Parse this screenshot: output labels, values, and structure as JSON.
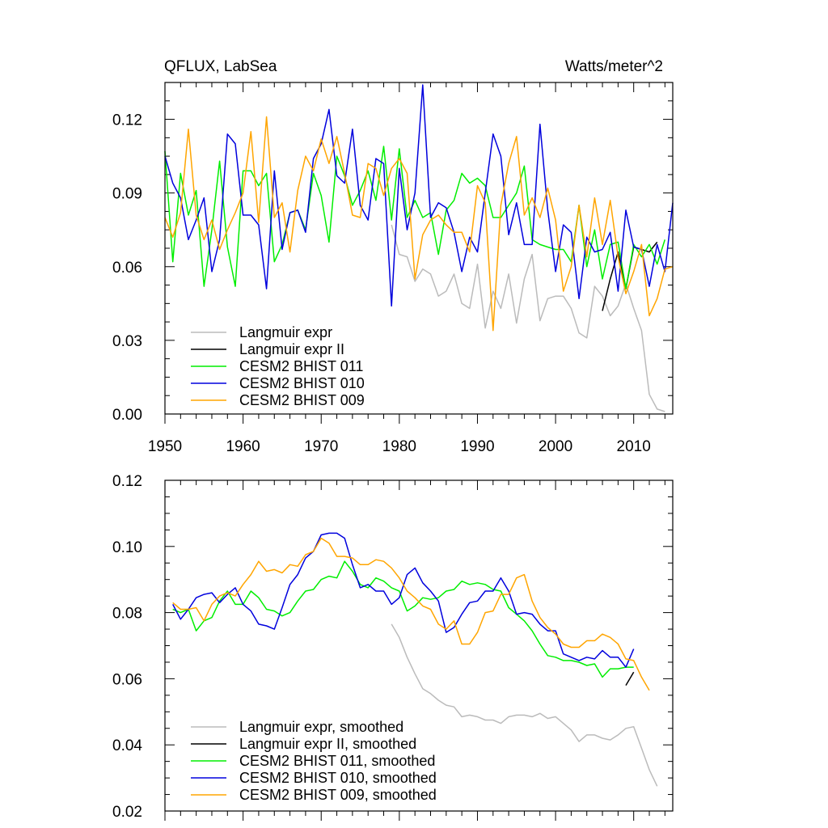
{
  "chart_data": [
    {
      "type": "line",
      "title": "QFLUX, LabSea",
      "units": "Watts/meter^2",
      "xlim": [
        1950,
        2015
      ],
      "ylim": [
        0.0,
        0.135
      ],
      "xticks": [
        "1950",
        "1960",
        "1970",
        "1980",
        "1990",
        "2000",
        "2010"
      ],
      "yticks": [
        "0.00",
        "0.03",
        "0.06",
        "0.09",
        "0.12"
      ],
      "xtick_values": [
        1950,
        1960,
        1970,
        1980,
        1990,
        2000,
        2010
      ],
      "ytick_values": [
        0.0,
        0.03,
        0.06,
        0.09,
        0.12
      ],
      "legend_position": "bottom-left",
      "series": [
        {
          "name": "Langmuir expr",
          "color": "#bbbbbb",
          "x_start": 1979,
          "values": [
            0.077,
            0.065,
            0.064,
            0.054,
            0.059,
            0.057,
            0.048,
            0.05,
            0.057,
            0.045,
            0.043,
            0.061,
            0.035,
            0.05,
            0.043,
            0.057,
            0.037,
            0.055,
            0.065,
            0.038,
            0.047,
            0.048,
            0.048,
            0.043,
            0.033,
            0.031,
            0.052,
            0.048,
            0.04,
            0.044,
            0.053,
            0.043,
            0.034,
            0.008,
            0.002,
            0.001
          ]
        },
        {
          "name": "Langmuir expr II",
          "color": "#000000",
          "x_start": 2006,
          "values": [
            0.042,
            0.055,
            0.066,
            0.051,
            0.068,
            0.067,
            0.066,
            0.07
          ]
        },
        {
          "name": "CESM2 BHIST 011",
          "color": "#00ee00",
          "x_start": 1950,
          "values": [
            0.107,
            0.062,
            0.098,
            0.081,
            0.091,
            0.052,
            0.075,
            0.103,
            0.068,
            0.052,
            0.099,
            0.099,
            0.093,
            0.098,
            0.062,
            0.069,
            0.082,
            0.083,
            0.075,
            0.098,
            0.089,
            0.07,
            0.105,
            0.097,
            0.085,
            0.091,
            0.099,
            0.087,
            0.109,
            0.079,
            0.108,
            0.08,
            0.087,
            0.08,
            0.082,
            0.065,
            0.083,
            0.087,
            0.098,
            0.094,
            0.096,
            0.093,
            0.08,
            0.08,
            0.085,
            0.09,
            0.101,
            0.071,
            0.069,
            0.068,
            0.067,
            0.067,
            0.062,
            0.085,
            0.06,
            0.075,
            0.055,
            0.069,
            0.07,
            0.051,
            0.069,
            0.064,
            0.069,
            0.061,
            0.071
          ]
        },
        {
          "name": "CESM2 BHIST 010",
          "color": "#0000dd",
          "x_start": 1950,
          "values": [
            0.105,
            0.094,
            0.088,
            0.071,
            0.079,
            0.088,
            0.058,
            0.071,
            0.114,
            0.11,
            0.081,
            0.081,
            0.077,
            0.051,
            0.099,
            0.067,
            0.082,
            0.083,
            0.074,
            0.104,
            0.11,
            0.124,
            0.097,
            0.094,
            0.116,
            0.085,
            0.079,
            0.104,
            0.102,
            0.044,
            0.1,
            0.075,
            0.09,
            0.134,
            0.08,
            0.086,
            0.084,
            0.074,
            0.058,
            0.072,
            0.066,
            0.09,
            0.114,
            0.105,
            0.073,
            0.086,
            0.069,
            0.069,
            0.118,
            0.083,
            0.058,
            0.077,
            0.074,
            0.047,
            0.072,
            0.066,
            0.067,
            0.074,
            0.05,
            0.083,
            0.068,
            0.067,
            0.052,
            0.069,
            0.058,
            0.086
          ]
        },
        {
          "name": "CESM2 BHIST 009",
          "color": "#ffa500",
          "x_start": 1950,
          "values": [
            0.08,
            0.072,
            0.082,
            0.116,
            0.081,
            0.071,
            0.079,
            0.067,
            0.075,
            0.082,
            0.09,
            0.115,
            0.078,
            0.121,
            0.08,
            0.086,
            0.066,
            0.091,
            0.105,
            0.099,
            0.112,
            0.102,
            0.113,
            0.098,
            0.081,
            0.08,
            0.102,
            0.1,
            0.089,
            0.1,
            0.104,
            0.098,
            0.055,
            0.073,
            0.079,
            0.081,
            0.077,
            0.074,
            0.074,
            0.066,
            0.093,
            0.086,
            0.034,
            0.085,
            0.102,
            0.113,
            0.081,
            0.088,
            0.08,
            0.092,
            0.079,
            0.05,
            0.06,
            0.085,
            0.064,
            0.088,
            0.069,
            0.087,
            0.064,
            0.049,
            0.058,
            0.069,
            0.04,
            0.047,
            0.059,
            0.06
          ]
        }
      ]
    },
    {
      "type": "line",
      "title": "",
      "xlim": [
        1950,
        2015
      ],
      "ylim": [
        0.02,
        0.12
      ],
      "xticks": [],
      "yticks": [
        "0.02",
        "0.04",
        "0.06",
        "0.08",
        "0.10",
        "0.12"
      ],
      "ytick_values": [
        0.02,
        0.04,
        0.06,
        0.08,
        0.1,
        0.12
      ],
      "legend_position": "bottom-left",
      "series": [
        {
          "name": "Langmuir expr, smoothed",
          "color": "#bbbbbb",
          "x_start": 1979,
          "values": [
            0.0765,
            0.0725,
            0.0665,
            0.0615,
            0.057,
            0.0555,
            0.0535,
            0.052,
            0.0515,
            0.0485,
            0.049,
            0.0485,
            0.0475,
            0.0475,
            0.0465,
            0.0485,
            0.049,
            0.049,
            0.0485,
            0.0495,
            0.048,
            0.0485,
            0.0465,
            0.0445,
            0.041,
            0.043,
            0.043,
            0.042,
            0.0415,
            0.043,
            0.045,
            0.0455,
            0.039,
            0.0325,
            0.0275
          ]
        },
        {
          "name": "Langmuir expr II, smoothed",
          "color": "#000000",
          "x_start": 2009,
          "values": [
            0.058,
            0.062
          ]
        },
        {
          "name": "CESM2 BHIST 011, smoothed",
          "color": "#00ee00",
          "x_start": 1951,
          "values": [
            0.081,
            0.08,
            0.081,
            0.0745,
            0.0775,
            0.0785,
            0.0835,
            0.0865,
            0.0825,
            0.0825,
            0.0865,
            0.0845,
            0.081,
            0.0805,
            0.079,
            0.08,
            0.0835,
            0.0865,
            0.087,
            0.09,
            0.091,
            0.0905,
            0.0955,
            0.0925,
            0.0885,
            0.0875,
            0.0905,
            0.0895,
            0.0875,
            0.0865,
            0.0805,
            0.082,
            0.0845,
            0.084,
            0.0845,
            0.0865,
            0.087,
            0.0895,
            0.0885,
            0.089,
            0.0885,
            0.087,
            0.0865,
            0.0815,
            0.0795,
            0.0775,
            0.0745,
            0.0705,
            0.067,
            0.0665,
            0.0655,
            0.0655,
            0.065,
            0.064,
            0.0645,
            0.0605,
            0.063,
            0.063,
            0.0635,
            0.0635
          ]
        },
        {
          "name": "CESM2 BHIST 010, smoothed",
          "color": "#0000dd",
          "x_start": 1951,
          "values": [
            0.0825,
            0.078,
            0.081,
            0.0845,
            0.0855,
            0.086,
            0.083,
            0.0855,
            0.0875,
            0.0825,
            0.0805,
            0.0765,
            0.076,
            0.075,
            0.0815,
            0.0885,
            0.0915,
            0.0965,
            0.0985,
            0.1035,
            0.104,
            0.104,
            0.1025,
            0.0945,
            0.0875,
            0.0885,
            0.0865,
            0.0865,
            0.0825,
            0.0845,
            0.0915,
            0.0935,
            0.089,
            0.0865,
            0.0835,
            0.074,
            0.0755,
            0.0795,
            0.083,
            0.0835,
            0.0865,
            0.0865,
            0.0905,
            0.0865,
            0.0795,
            0.08,
            0.0795,
            0.0765,
            0.0745,
            0.0745,
            0.0675,
            0.0665,
            0.0655,
            0.0665,
            0.066,
            0.0685,
            0.0665,
            0.0665,
            0.0635,
            0.069
          ]
        },
        {
          "name": "CESM2 BHIST 009, smoothed",
          "color": "#ffa500",
          "x_start": 1951,
          "values": [
            0.083,
            0.081,
            0.081,
            0.0815,
            0.0775,
            0.0825,
            0.085,
            0.086,
            0.085,
            0.0885,
            0.0915,
            0.0955,
            0.0925,
            0.093,
            0.092,
            0.0945,
            0.094,
            0.0975,
            0.0985,
            0.1025,
            0.101,
            0.097,
            0.097,
            0.0965,
            0.0945,
            0.0945,
            0.096,
            0.0955,
            0.0935,
            0.0905,
            0.0865,
            0.0845,
            0.082,
            0.081,
            0.0765,
            0.075,
            0.0775,
            0.0705,
            0.0705,
            0.074,
            0.08,
            0.0805,
            0.0855,
            0.0855,
            0.0905,
            0.0915,
            0.0835,
            0.0785,
            0.0755,
            0.0735,
            0.0705,
            0.0695,
            0.0695,
            0.0715,
            0.0715,
            0.0735,
            0.0725,
            0.0705,
            0.066,
            0.0655,
            0.0605,
            0.0565
          ]
        }
      ]
    }
  ]
}
